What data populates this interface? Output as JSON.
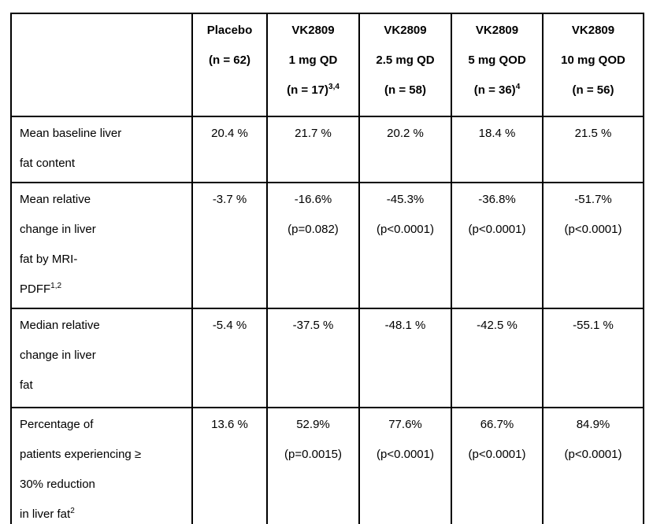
{
  "page": {
    "background_color": "#ffffff",
    "text_color": "#000000",
    "border_color": "#000000"
  },
  "table": {
    "columns": [
      {
        "id": "row-label",
        "lines": []
      },
      {
        "id": "placebo",
        "lines": [
          "Placebo",
          "(n = 62)"
        ]
      },
      {
        "id": "vk2809-1mg-qd",
        "lines": [
          "VK2809",
          "1 mg QD",
          {
            "text": "(n = 17)",
            "sup": "3,4"
          }
        ]
      },
      {
        "id": "vk2809-2-5mg-qd",
        "lines": [
          "VK2809",
          "2.5 mg QD",
          "(n = 58)"
        ]
      },
      {
        "id": "vk2809-5mg-qod",
        "lines": [
          "VK2809",
          "5 mg QOD",
          {
            "text": "(n = 36)",
            "sup": "4"
          }
        ]
      },
      {
        "id": "vk2809-10mg-qod",
        "lines": [
          "VK2809",
          "10 mg QOD",
          "(n = 56)"
        ]
      }
    ],
    "rows": [
      {
        "id": "mean-baseline-liver-fat",
        "label": [
          "Mean baseline liver",
          "fat content"
        ],
        "cells": [
          [
            "20.4 %"
          ],
          [
            "21.7 %"
          ],
          [
            "20.2 %"
          ],
          [
            "18.4 %"
          ],
          [
            "21.5 %"
          ]
        ]
      },
      {
        "id": "mean-relative-change-mri-pdff",
        "label": [
          "Mean relative",
          "change in liver",
          "fat by MRI-",
          {
            "text": "PDFF",
            "sup": "1,2"
          }
        ],
        "cells": [
          [
            "-3.7 %"
          ],
          [
            "-16.6%",
            "(p=0.082)"
          ],
          [
            "-45.3%",
            "(p<0.0001)"
          ],
          [
            "-36.8%",
            "(p<0.0001)"
          ],
          [
            "-51.7%",
            "(p<0.0001)"
          ]
        ]
      },
      {
        "id": "median-relative-change",
        "label": [
          "Median relative",
          "change in liver",
          "fat"
        ],
        "cells": [
          [
            "-5.4 %"
          ],
          [
            "-37.5 %"
          ],
          [
            "-48.1 %"
          ],
          [
            "-42.5 %"
          ],
          [
            "-55.1 %"
          ]
        ]
      },
      {
        "id": "percentage-patients-30pct-reduction",
        "label": [
          "Percentage of",
          "patients experiencing ≥",
          "30% reduction",
          {
            "text": "in liver fat",
            "sup": "2"
          }
        ],
        "cells": [
          [
            "13.6 %"
          ],
          [
            "52.9%",
            "(p=0.0015)"
          ],
          [
            "77.6%",
            "(p<0.0001)"
          ],
          [
            "66.7%",
            "(p<0.0001)"
          ],
          [
            "84.9%",
            "(p<0.0001)"
          ]
        ]
      }
    ]
  }
}
